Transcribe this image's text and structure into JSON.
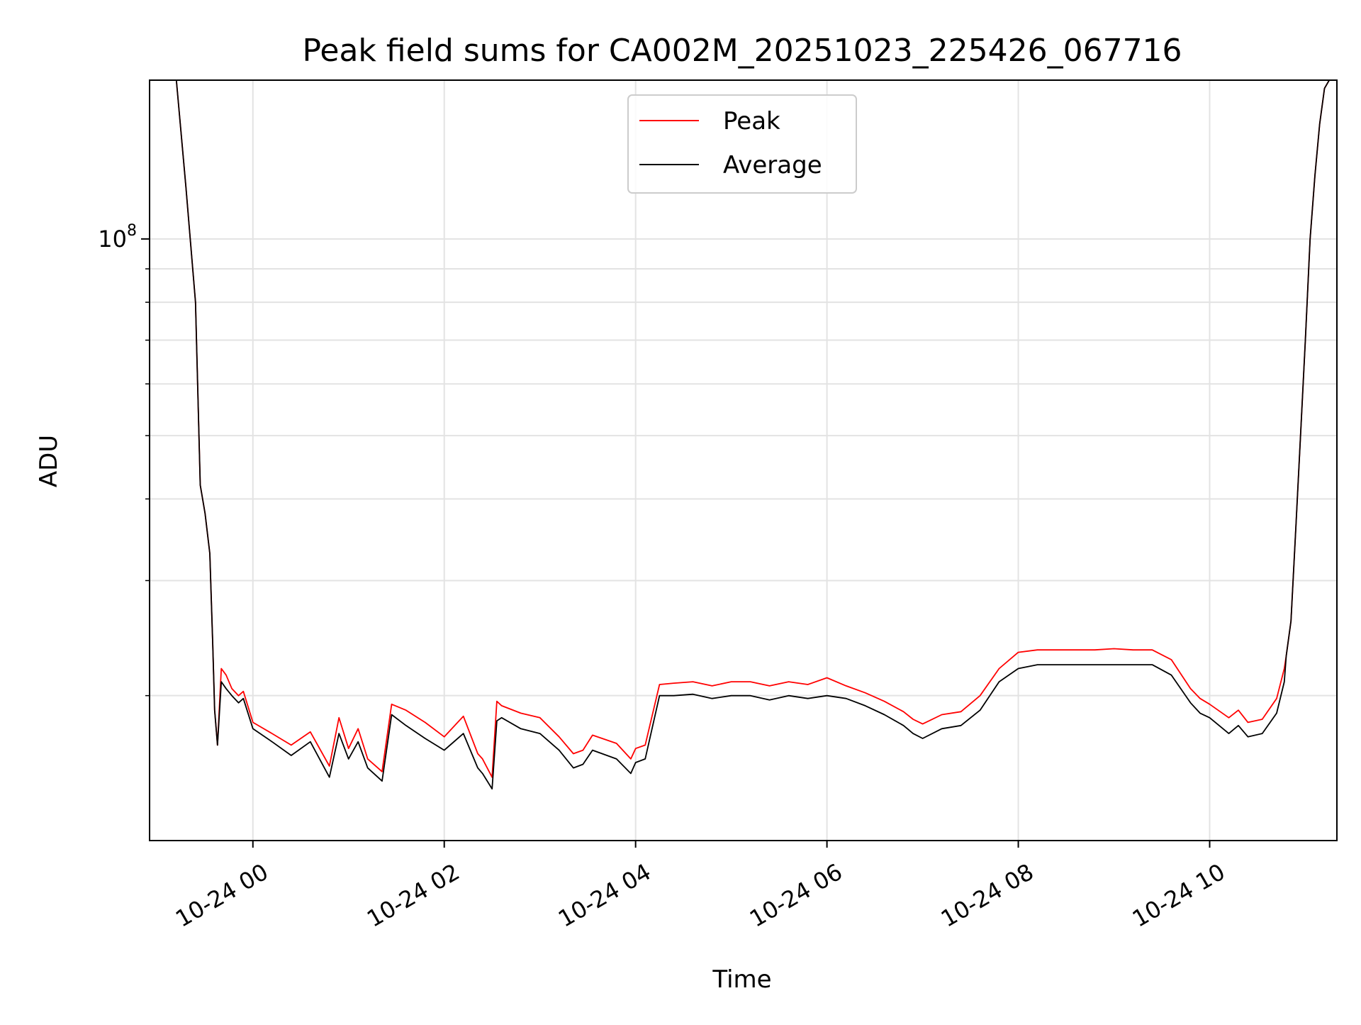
{
  "chart_data": {
    "type": "line",
    "title": "Peak field sums for CA002M_20251023_225426_067716",
    "xlabel": "Time",
    "ylabel": "ADU",
    "y_scale": "log",
    "ylim": [
      12000000,
      175000000
    ],
    "x_unit": "hours since 2025-10-24 00:00",
    "xlim": [
      -1.08,
      11.33
    ],
    "x_ticks": [
      {
        "value": 0,
        "label": "10-24 00"
      },
      {
        "value": 2,
        "label": "10-24 02"
      },
      {
        "value": 4,
        "label": "10-24 04"
      },
      {
        "value": 6,
        "label": "10-24 06"
      },
      {
        "value": 8,
        "label": "10-24 08"
      },
      {
        "value": 10,
        "label": "10-24 10"
      }
    ],
    "y_major_ticks": [
      {
        "value": 100000000,
        "label_base": "10",
        "label_exp": "8"
      }
    ],
    "y_minor_ticks": [
      20000000,
      30000000,
      40000000,
      50000000,
      60000000,
      70000000,
      80000000,
      90000000,
      200000000
    ],
    "grid": true,
    "legend": {
      "position": "top-center",
      "entries": [
        {
          "label": "Peak",
          "color": "#ff0000"
        },
        {
          "label": "Average",
          "color": "#000000"
        }
      ]
    },
    "series": [
      {
        "name": "Average",
        "color": "#000000",
        "x": [
          -0.8,
          -0.7,
          -0.6,
          -0.55,
          -0.5,
          -0.45,
          -0.42,
          -0.4,
          -0.38,
          -0.37,
          -0.33,
          -0.28,
          -0.22,
          -0.15,
          -0.1,
          0.0,
          0.2,
          0.4,
          0.6,
          0.8,
          0.9,
          1.0,
          1.1,
          1.2,
          1.35,
          1.45,
          1.6,
          1.8,
          2.0,
          2.2,
          2.35,
          2.4,
          2.5,
          2.55,
          2.6,
          2.8,
          3.0,
          3.2,
          3.35,
          3.45,
          3.55,
          3.65,
          3.8,
          3.95,
          4.0,
          4.1,
          4.25,
          4.4,
          4.6,
          4.8,
          5.0,
          5.2,
          5.4,
          5.6,
          5.8,
          6.0,
          6.2,
          6.4,
          6.6,
          6.8,
          6.9,
          7.0,
          7.2,
          7.4,
          7.6,
          7.8,
          8.0,
          8.2,
          8.4,
          8.6,
          8.8,
          9.0,
          9.2,
          9.4,
          9.6,
          9.8,
          9.9,
          10.0,
          10.2,
          10.3,
          10.4,
          10.55,
          10.7,
          10.78,
          10.8,
          10.85,
          10.9,
          10.95,
          11.0,
          11.05,
          11.1,
          11.15,
          11.2,
          11.25
        ],
        "values": [
          175000000,
          120000000,
          80000000,
          42000000,
          38000000,
          33000000,
          24000000,
          19000000,
          17500000,
          16800000,
          21000000,
          20500000,
          20000000,
          19500000,
          19800000,
          17800000,
          17000000,
          16200000,
          17000000,
          15000000,
          17500000,
          16000000,
          17000000,
          15500000,
          14800000,
          18700000,
          18000000,
          17200000,
          16500000,
          17500000,
          15500000,
          15200000,
          14400000,
          18300000,
          18500000,
          17800000,
          17500000,
          16500000,
          15500000,
          15700000,
          16500000,
          16300000,
          16000000,
          15200000,
          15800000,
          16000000,
          20000000,
          20000000,
          20100000,
          19800000,
          20000000,
          20000000,
          19700000,
          20000000,
          19800000,
          20000000,
          19800000,
          19300000,
          18700000,
          18000000,
          17500000,
          17200000,
          17800000,
          18000000,
          19000000,
          21000000,
          22000000,
          22300000,
          22300000,
          22300000,
          22300000,
          22300000,
          22300000,
          22300000,
          21500000,
          19500000,
          18800000,
          18500000,
          17500000,
          18000000,
          17300000,
          17500000,
          18800000,
          21000000,
          23000000,
          26000000,
          36000000,
          50000000,
          70000000,
          100000000,
          125000000,
          150000000,
          170000000,
          175000000
        ]
      },
      {
        "name": "Peak",
        "color": "#ff0000",
        "x": [
          -0.8,
          -0.7,
          -0.6,
          -0.55,
          -0.5,
          -0.45,
          -0.42,
          -0.4,
          -0.38,
          -0.37,
          -0.33,
          -0.28,
          -0.22,
          -0.15,
          -0.1,
          0.0,
          0.2,
          0.4,
          0.6,
          0.8,
          0.9,
          1.0,
          1.1,
          1.2,
          1.35,
          1.45,
          1.6,
          1.8,
          2.0,
          2.2,
          2.35,
          2.4,
          2.5,
          2.55,
          2.6,
          2.8,
          3.0,
          3.2,
          3.35,
          3.45,
          3.55,
          3.65,
          3.8,
          3.95,
          4.0,
          4.1,
          4.25,
          4.4,
          4.6,
          4.8,
          5.0,
          5.2,
          5.4,
          5.6,
          5.8,
          6.0,
          6.2,
          6.4,
          6.6,
          6.8,
          6.9,
          7.0,
          7.2,
          7.4,
          7.6,
          7.8,
          8.0,
          8.2,
          8.4,
          8.6,
          8.8,
          9.0,
          9.2,
          9.4,
          9.6,
          9.8,
          9.9,
          10.0,
          10.2,
          10.3,
          10.4,
          10.55,
          10.7,
          10.78,
          10.8,
          10.85,
          10.9,
          10.95,
          11.0,
          11.05,
          11.1,
          11.15,
          11.2,
          11.25
        ],
        "values": [
          175000000,
          120000000,
          80000000,
          42000000,
          38000000,
          33000000,
          24000000,
          19000000,
          17500000,
          16800000,
          22000000,
          21500000,
          20500000,
          20000000,
          20300000,
          18200000,
          17500000,
          16800000,
          17600000,
          15600000,
          18500000,
          16600000,
          17800000,
          16000000,
          15300000,
          19400000,
          19000000,
          18200000,
          17300000,
          18600000,
          16300000,
          16000000,
          15000000,
          19600000,
          19300000,
          18800000,
          18500000,
          17300000,
          16300000,
          16500000,
          17400000,
          17200000,
          16900000,
          16000000,
          16600000,
          16800000,
          20800000,
          20900000,
          21000000,
          20700000,
          21000000,
          21000000,
          20700000,
          21000000,
          20800000,
          21300000,
          20700000,
          20200000,
          19600000,
          18900000,
          18400000,
          18100000,
          18700000,
          18900000,
          20000000,
          22000000,
          23300000,
          23500000,
          23500000,
          23500000,
          23500000,
          23600000,
          23500000,
          23500000,
          22700000,
          20500000,
          19800000,
          19400000,
          18500000,
          19000000,
          18200000,
          18400000,
          19800000,
          22000000,
          23000000,
          26000000,
          36000000,
          50000000,
          70000000,
          100000000,
          125000000,
          150000000,
          170000000,
          175000000
        ]
      }
    ]
  }
}
